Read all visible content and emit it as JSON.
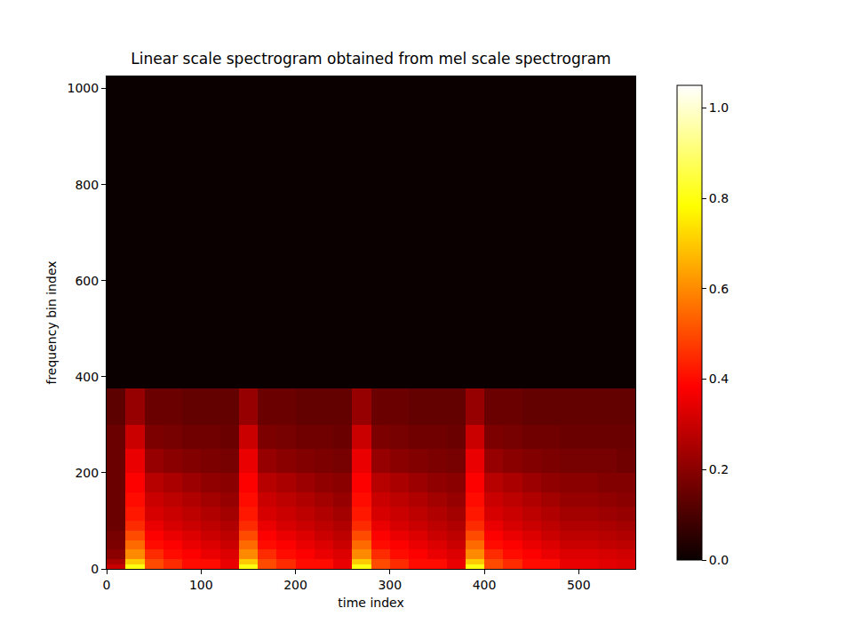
{
  "chart_data": {
    "type": "heatmap",
    "title": "Linear scale spectrogram obtained from mel scale spectrogram",
    "x_label": "time index",
    "y_label": "frequency bin index",
    "x": [
      0,
      20,
      40,
      60,
      80,
      100,
      120,
      140,
      160,
      180,
      200,
      220,
      240,
      260,
      280,
      300,
      320,
      340,
      360,
      380,
      400,
      420,
      440,
      460,
      480,
      500,
      520,
      540,
      560
    ],
    "y": [
      0,
      10,
      20,
      40,
      60,
      80,
      100,
      130,
      160,
      200,
      250,
      300,
      376,
      1025
    ],
    "z": [
      [
        0.3,
        0.8,
        0.5,
        0.45,
        0.4,
        0.4,
        0.35,
        0.8,
        0.5,
        0.45,
        0.4,
        0.4,
        0.35,
        0.8,
        0.5,
        0.45,
        0.4,
        0.4,
        0.35,
        0.8,
        0.5,
        0.45,
        0.4,
        0.4,
        0.35,
        0.35,
        0.34,
        0.33
      ],
      [
        0.25,
        0.7,
        0.5,
        0.45,
        0.4,
        0.4,
        0.35,
        0.7,
        0.5,
        0.45,
        0.4,
        0.4,
        0.35,
        0.7,
        0.5,
        0.45,
        0.4,
        0.4,
        0.35,
        0.7,
        0.5,
        0.45,
        0.4,
        0.4,
        0.35,
        0.35,
        0.34,
        0.33
      ],
      [
        0.2,
        0.6,
        0.45,
        0.4,
        0.38,
        0.35,
        0.33,
        0.6,
        0.45,
        0.4,
        0.38,
        0.35,
        0.33,
        0.6,
        0.45,
        0.4,
        0.38,
        0.35,
        0.33,
        0.6,
        0.45,
        0.4,
        0.38,
        0.35,
        0.33,
        0.33,
        0.32,
        0.31
      ],
      [
        0.18,
        0.55,
        0.4,
        0.38,
        0.35,
        0.33,
        0.3,
        0.55,
        0.4,
        0.38,
        0.35,
        0.33,
        0.3,
        0.55,
        0.4,
        0.38,
        0.35,
        0.33,
        0.3,
        0.55,
        0.4,
        0.38,
        0.35,
        0.33,
        0.3,
        0.3,
        0.29,
        0.28
      ],
      [
        0.17,
        0.5,
        0.38,
        0.35,
        0.33,
        0.3,
        0.28,
        0.5,
        0.38,
        0.35,
        0.33,
        0.3,
        0.28,
        0.5,
        0.38,
        0.35,
        0.33,
        0.3,
        0.28,
        0.5,
        0.38,
        0.35,
        0.33,
        0.3,
        0.28,
        0.28,
        0.27,
        0.26
      ],
      [
        0.15,
        0.45,
        0.35,
        0.32,
        0.3,
        0.28,
        0.26,
        0.45,
        0.35,
        0.32,
        0.3,
        0.28,
        0.26,
        0.45,
        0.35,
        0.32,
        0.3,
        0.28,
        0.26,
        0.45,
        0.35,
        0.32,
        0.3,
        0.28,
        0.26,
        0.26,
        0.25,
        0.24
      ],
      [
        0.15,
        0.42,
        0.32,
        0.3,
        0.28,
        0.26,
        0.24,
        0.42,
        0.32,
        0.3,
        0.28,
        0.26,
        0.24,
        0.42,
        0.32,
        0.3,
        0.28,
        0.26,
        0.24,
        0.42,
        0.32,
        0.3,
        0.28,
        0.26,
        0.24,
        0.24,
        0.23,
        0.22
      ],
      [
        0.15,
        0.4,
        0.3,
        0.28,
        0.26,
        0.24,
        0.22,
        0.4,
        0.3,
        0.28,
        0.26,
        0.24,
        0.22,
        0.4,
        0.3,
        0.28,
        0.26,
        0.24,
        0.22,
        0.4,
        0.3,
        0.28,
        0.26,
        0.24,
        0.22,
        0.22,
        0.21,
        0.2
      ],
      [
        0.15,
        0.38,
        0.27,
        0.25,
        0.23,
        0.21,
        0.2,
        0.38,
        0.27,
        0.25,
        0.23,
        0.21,
        0.2,
        0.38,
        0.27,
        0.25,
        0.23,
        0.21,
        0.2,
        0.38,
        0.27,
        0.25,
        0.23,
        0.21,
        0.2,
        0.2,
        0.19,
        0.19
      ],
      [
        0.15,
        0.35,
        0.22,
        0.2,
        0.19,
        0.18,
        0.17,
        0.35,
        0.22,
        0.2,
        0.19,
        0.18,
        0.17,
        0.35,
        0.22,
        0.2,
        0.19,
        0.18,
        0.17,
        0.35,
        0.22,
        0.2,
        0.19,
        0.18,
        0.17,
        0.17,
        0.17,
        0.16
      ],
      [
        0.15,
        0.3,
        0.18,
        0.17,
        0.16,
        0.16,
        0.15,
        0.3,
        0.18,
        0.17,
        0.16,
        0.16,
        0.15,
        0.3,
        0.18,
        0.17,
        0.16,
        0.16,
        0.15,
        0.3,
        0.18,
        0.17,
        0.16,
        0.16,
        0.15,
        0.15,
        0.15,
        0.15
      ],
      [
        0.13,
        0.22,
        0.15,
        0.15,
        0.14,
        0.14,
        0.14,
        0.22,
        0.15,
        0.15,
        0.14,
        0.14,
        0.14,
        0.22,
        0.15,
        0.15,
        0.14,
        0.14,
        0.14,
        0.22,
        0.15,
        0.15,
        0.14,
        0.14,
        0.14,
        0.14,
        0.14,
        0.14
      ],
      [
        0,
        0,
        0,
        0,
        0,
        0,
        0,
        0,
        0,
        0,
        0,
        0,
        0,
        0,
        0,
        0,
        0,
        0,
        0,
        0,
        0,
        0,
        0,
        0,
        0,
        0,
        0,
        0
      ]
    ],
    "xlim": [
      0,
      560
    ],
    "ylim": [
      0,
      1025
    ],
    "xticks": [
      0,
      100,
      200,
      300,
      400,
      500
    ],
    "yticks": [
      0,
      200,
      400,
      600,
      800,
      1000
    ],
    "zlim": [
      0,
      1.05
    ],
    "zticks": [
      {
        "value": 0,
        "label": "0.0"
      },
      {
        "value": 0.2,
        "label": "0.2"
      },
      {
        "value": 0.4,
        "label": "0.4"
      },
      {
        "value": 0.6,
        "label": "0.6"
      },
      {
        "value": 0.8,
        "label": "0.8"
      },
      {
        "value": 1,
        "label": "1.0"
      }
    ],
    "grid": false
  }
}
